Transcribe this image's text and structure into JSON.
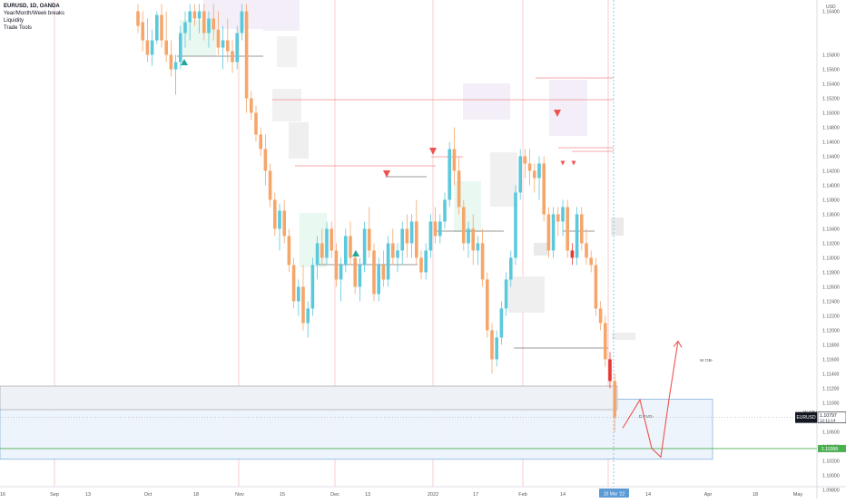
{
  "header": {
    "symbol": "EURUSD, 1D, OANDA",
    "indicators": [
      "Year/Month/Week breaks",
      "Liquidity",
      "Trade Tools"
    ]
  },
  "currency": "USD",
  "price_axis": {
    "ticks": [
      "1.16400",
      "1.15800",
      "1.15600",
      "1.15400",
      "1.15200",
      "1.15000",
      "1.14800",
      "1.14600",
      "1.14400",
      "1.14200",
      "1.14000",
      "1.13800",
      "1.13600",
      "1.13400",
      "1.13200",
      "1.13000",
      "1.12800",
      "1.12600",
      "1.12400",
      "1.12200",
      "1.12000",
      "1.11800",
      "1.11600",
      "1.11400",
      "1.11200",
      "1.11000",
      "1.10600",
      "1.10400",
      "1.10200",
      "1.10000",
      "1.09800",
      "1.09600",
      "1.09400"
    ]
  },
  "time_axis": {
    "labels": [
      "16",
      "Sep",
      "13",
      "Oct",
      "18",
      "Nov",
      "15",
      "Dec",
      "13",
      "2022",
      "17",
      "Feb",
      "14",
      "14",
      "Apr",
      "18",
      "May"
    ],
    "current_date_label": "10 Mar '22"
  },
  "last_price": {
    "symbol": "EURUSD",
    "price": "1.10797",
    "countdown": "12:11:14"
  },
  "zones": {
    "w_ob_label": "W OB-",
    "d_fvg_label": "D FVG-",
    "w_ob_right_label": "W OB+",
    "green_level_price": "1.10368"
  },
  "colors": {
    "bull": "#5BC8DC",
    "bear": "#F5A66B",
    "strong_bear": "#E53935",
    "buy_marker": "#26A69A",
    "sell_marker": "#EF5350",
    "break_line": "#F28B8B",
    "green_level": "#4CAF50",
    "zone_blue": "#5B9BD5"
  },
  "chart_data": {
    "type": "candlestick",
    "symbol": "EURUSD",
    "timeframe": "1D",
    "y_unit": "USD",
    "ylim": [
      1.093,
      1.166
    ],
    "price_ticks": [
      1.164,
      1.158,
      1.156,
      1.154,
      1.152,
      1.15,
      1.148,
      1.146,
      1.144,
      1.142,
      1.14,
      1.138,
      1.136,
      1.134,
      1.132,
      1.13,
      1.128,
      1.126,
      1.124,
      1.122,
      1.12,
      1.118,
      1.116,
      1.114,
      1.112,
      1.11,
      1.106,
      1.104,
      1.102,
      1.1,
      1.098,
      1.096,
      1.094
    ],
    "last_price": 1.10797,
    "green_level": 1.10368,
    "w_ob_zone": [
      1.1022,
      1.1105
    ],
    "d_fvg_level": 1.1037,
    "projection_path": [
      1.1065,
      1.1104,
      1.1037,
      1.1025,
      1.1105,
      1.1185
    ],
    "candles": [
      {
        "o": 1.164,
        "h": 1.165,
        "l": 1.161,
        "c": 1.162
      },
      {
        "o": 1.1625,
        "h": 1.164,
        "l": 1.1585,
        "c": 1.16
      },
      {
        "o": 1.16,
        "h": 1.163,
        "l": 1.157,
        "c": 1.158
      },
      {
        "o": 1.158,
        "h": 1.1615,
        "l": 1.1565,
        "c": 1.16
      },
      {
        "o": 1.16,
        "h": 1.164,
        "l": 1.1595,
        "c": 1.1635
      },
      {
        "o": 1.1635,
        "h": 1.165,
        "l": 1.159,
        "c": 1.16
      },
      {
        "o": 1.16,
        "h": 1.164,
        "l": 1.157,
        "c": 1.158
      },
      {
        "o": 1.158,
        "h": 1.16,
        "l": 1.155,
        "c": 1.156
      },
      {
        "o": 1.156,
        "h": 1.158,
        "l": 1.1525,
        "c": 1.157
      },
      {
        "o": 1.157,
        "h": 1.162,
        "l": 1.156,
        "c": 1.161
      },
      {
        "o": 1.161,
        "h": 1.164,
        "l": 1.159,
        "c": 1.1625
      },
      {
        "o": 1.1625,
        "h": 1.165,
        "l": 1.16,
        "c": 1.164
      },
      {
        "o": 1.164,
        "h": 1.165,
        "l": 1.162,
        "c": 1.163
      },
      {
        "o": 1.163,
        "h": 1.165,
        "l": 1.161,
        "c": 1.164
      },
      {
        "o": 1.164,
        "h": 1.165,
        "l": 1.16,
        "c": 1.161
      },
      {
        "o": 1.161,
        "h": 1.164,
        "l": 1.159,
        "c": 1.163
      },
      {
        "o": 1.163,
        "h": 1.165,
        "l": 1.16,
        "c": 1.1615
      },
      {
        "o": 1.1615,
        "h": 1.164,
        "l": 1.158,
        "c": 1.159
      },
      {
        "o": 1.159,
        "h": 1.162,
        "l": 1.156,
        "c": 1.16
      },
      {
        "o": 1.16,
        "h": 1.163,
        "l": 1.157,
        "c": 1.1585
      },
      {
        "o": 1.1585,
        "h": 1.16,
        "l": 1.1555,
        "c": 1.157
      },
      {
        "o": 1.157,
        "h": 1.162,
        "l": 1.156,
        "c": 1.161
      },
      {
        "o": 1.161,
        "h": 1.165,
        "l": 1.16,
        "c": 1.164
      },
      {
        "o": 1.164,
        "h": 1.165,
        "l": 1.15,
        "c": 1.152
      },
      {
        "o": 1.152,
        "h": 1.153,
        "l": 1.149,
        "c": 1.15
      },
      {
        "o": 1.15,
        "h": 1.151,
        "l": 1.146,
        "c": 1.147
      },
      {
        "o": 1.147,
        "h": 1.148,
        "l": 1.144,
        "c": 1.145
      },
      {
        "o": 1.145,
        "h": 1.147,
        "l": 1.14,
        "c": 1.142
      },
      {
        "o": 1.142,
        "h": 1.143,
        "l": 1.137,
        "c": 1.138
      },
      {
        "o": 1.138,
        "h": 1.139,
        "l": 1.133,
        "c": 1.134
      },
      {
        "o": 1.134,
        "h": 1.1375,
        "l": 1.131,
        "c": 1.1365
      },
      {
        "o": 1.1365,
        "h": 1.138,
        "l": 1.132,
        "c": 1.133
      },
      {
        "o": 1.133,
        "h": 1.134,
        "l": 1.128,
        "c": 1.129
      },
      {
        "o": 1.129,
        "h": 1.13,
        "l": 1.123,
        "c": 1.124
      },
      {
        "o": 1.124,
        "h": 1.127,
        "l": 1.122,
        "c": 1.126
      },
      {
        "o": 1.126,
        "h": 1.129,
        "l": 1.12,
        "c": 1.121
      },
      {
        "o": 1.121,
        "h": 1.124,
        "l": 1.119,
        "c": 1.123
      },
      {
        "o": 1.123,
        "h": 1.13,
        "l": 1.122,
        "c": 1.129
      },
      {
        "o": 1.129,
        "h": 1.133,
        "l": 1.127,
        "c": 1.132
      },
      {
        "o": 1.132,
        "h": 1.134,
        "l": 1.129,
        "c": 1.13
      },
      {
        "o": 1.13,
        "h": 1.135,
        "l": 1.129,
        "c": 1.134
      },
      {
        "o": 1.134,
        "h": 1.135,
        "l": 1.13,
        "c": 1.131
      },
      {
        "o": 1.131,
        "h": 1.132,
        "l": 1.126,
        "c": 1.127
      },
      {
        "o": 1.127,
        "h": 1.13,
        "l": 1.124,
        "c": 1.129
      },
      {
        "o": 1.129,
        "h": 1.134,
        "l": 1.128,
        "c": 1.133
      },
      {
        "o": 1.133,
        "h": 1.135,
        "l": 1.129,
        "c": 1.13
      },
      {
        "o": 1.13,
        "h": 1.131,
        "l": 1.125,
        "c": 1.126
      },
      {
        "o": 1.126,
        "h": 1.13,
        "l": 1.124,
        "c": 1.129
      },
      {
        "o": 1.129,
        "h": 1.135,
        "l": 1.128,
        "c": 1.134
      },
      {
        "o": 1.134,
        "h": 1.137,
        "l": 1.13,
        "c": 1.131
      },
      {
        "o": 1.131,
        "h": 1.132,
        "l": 1.124,
        "c": 1.125
      },
      {
        "o": 1.125,
        "h": 1.13,
        "l": 1.124,
        "c": 1.129
      },
      {
        "o": 1.129,
        "h": 1.131,
        "l": 1.126,
        "c": 1.127
      },
      {
        "o": 1.127,
        "h": 1.133,
        "l": 1.126,
        "c": 1.132
      },
      {
        "o": 1.132,
        "h": 1.134,
        "l": 1.129,
        "c": 1.13
      },
      {
        "o": 1.13,
        "h": 1.132,
        "l": 1.128,
        "c": 1.131
      },
      {
        "o": 1.131,
        "h": 1.135,
        "l": 1.129,
        "c": 1.134
      },
      {
        "o": 1.134,
        "h": 1.136,
        "l": 1.13,
        "c": 1.132
      },
      {
        "o": 1.132,
        "h": 1.136,
        "l": 1.13,
        "c": 1.135
      },
      {
        "o": 1.135,
        "h": 1.138,
        "l": 1.129,
        "c": 1.13
      },
      {
        "o": 1.13,
        "h": 1.131,
        "l": 1.127,
        "c": 1.128
      },
      {
        "o": 1.128,
        "h": 1.132,
        "l": 1.127,
        "c": 1.131
      },
      {
        "o": 1.131,
        "h": 1.136,
        "l": 1.13,
        "c": 1.135
      },
      {
        "o": 1.135,
        "h": 1.137,
        "l": 1.132,
        "c": 1.133
      },
      {
        "o": 1.133,
        "h": 1.136,
        "l": 1.132,
        "c": 1.135
      },
      {
        "o": 1.135,
        "h": 1.139,
        "l": 1.134,
        "c": 1.138
      },
      {
        "o": 1.138,
        "h": 1.146,
        "l": 1.137,
        "c": 1.145
      },
      {
        "o": 1.145,
        "h": 1.148,
        "l": 1.14,
        "c": 1.142
      },
      {
        "o": 1.142,
        "h": 1.144,
        "l": 1.136,
        "c": 1.137
      },
      {
        "o": 1.137,
        "h": 1.138,
        "l": 1.131,
        "c": 1.132
      },
      {
        "o": 1.132,
        "h": 1.135,
        "l": 1.13,
        "c": 1.134
      },
      {
        "o": 1.134,
        "h": 1.136,
        "l": 1.129,
        "c": 1.131
      },
      {
        "o": 1.131,
        "h": 1.133,
        "l": 1.129,
        "c": 1.132
      },
      {
        "o": 1.132,
        "h": 1.134,
        "l": 1.126,
        "c": 1.127
      },
      {
        "o": 1.127,
        "h": 1.128,
        "l": 1.119,
        "c": 1.12
      },
      {
        "o": 1.12,
        "h": 1.121,
        "l": 1.114,
        "c": 1.116
      },
      {
        "o": 1.116,
        "h": 1.12,
        "l": 1.115,
        "c": 1.119
      },
      {
        "o": 1.119,
        "h": 1.124,
        "l": 1.118,
        "c": 1.123
      },
      {
        "o": 1.123,
        "h": 1.128,
        "l": 1.122,
        "c": 1.127
      },
      {
        "o": 1.127,
        "h": 1.131,
        "l": 1.126,
        "c": 1.13
      },
      {
        "o": 1.13,
        "h": 1.14,
        "l": 1.129,
        "c": 1.139
      },
      {
        "o": 1.139,
        "h": 1.145,
        "l": 1.138,
        "c": 1.144
      },
      {
        "o": 1.144,
        "h": 1.145,
        "l": 1.141,
        "c": 1.143
      },
      {
        "o": 1.143,
        "h": 1.145,
        "l": 1.14,
        "c": 1.142
      },
      {
        "o": 1.142,
        "h": 1.143,
        "l": 1.139,
        "c": 1.141
      },
      {
        "o": 1.141,
        "h": 1.144,
        "l": 1.138,
        "c": 1.143
      },
      {
        "o": 1.143,
        "h": 1.144,
        "l": 1.135,
        "c": 1.136
      },
      {
        "o": 1.136,
        "h": 1.137,
        "l": 1.13,
        "c": 1.131
      },
      {
        "o": 1.131,
        "h": 1.137,
        "l": 1.13,
        "c": 1.136
      },
      {
        "o": 1.136,
        "h": 1.137,
        "l": 1.133,
        "c": 1.135
      },
      {
        "o": 1.135,
        "h": 1.138,
        "l": 1.133,
        "c": 1.137
      },
      {
        "o": 1.137,
        "h": 1.138,
        "l": 1.13,
        "c": 1.131
      },
      {
        "o": 1.131,
        "h": 1.132,
        "l": 1.129,
        "c": 1.13
      },
      {
        "o": 1.13,
        "h": 1.137,
        "l": 1.129,
        "c": 1.136
      },
      {
        "o": 1.136,
        "h": 1.137,
        "l": 1.131,
        "c": 1.132
      },
      {
        "o": 1.132,
        "h": 1.134,
        "l": 1.129,
        "c": 1.13
      },
      {
        "o": 1.13,
        "h": 1.131,
        "l": 1.128,
        "c": 1.129
      },
      {
        "o": 1.129,
        "h": 1.13,
        "l": 1.122,
        "c": 1.123
      },
      {
        "o": 1.123,
        "h": 1.124,
        "l": 1.12,
        "c": 1.121
      },
      {
        "o": 1.121,
        "h": 1.122,
        "l": 1.115,
        "c": 1.116
      },
      {
        "o": 1.116,
        "h": 1.117,
        "l": 1.112,
        "c": 1.113
      },
      {
        "o": 1.113,
        "h": 1.114,
        "l": 1.106,
        "c": 1.108
      }
    ]
  }
}
